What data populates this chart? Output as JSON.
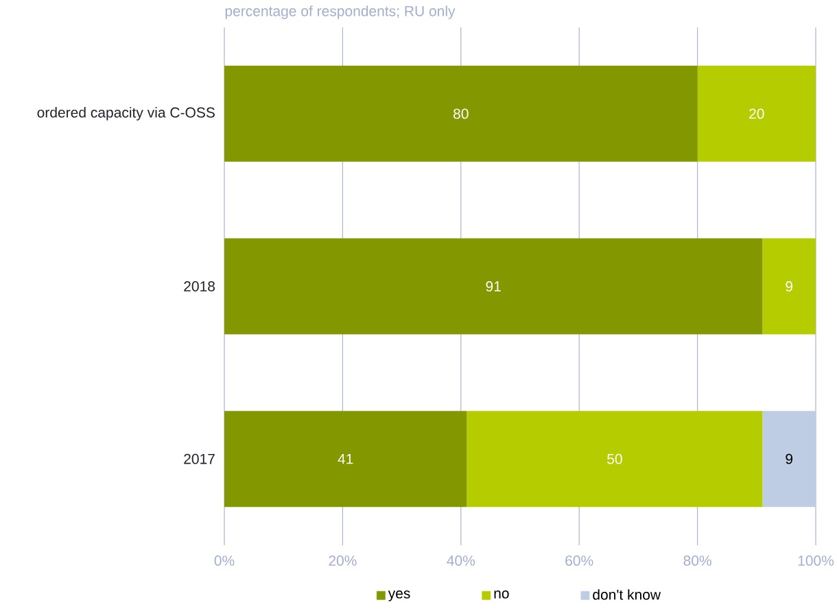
{
  "chart_data": {
    "type": "bar",
    "orientation": "horizontal",
    "stacked": true,
    "subtitle": "percentage of respondents; RU only",
    "categories": [
      "ordered capacity via C-OSS",
      "2018",
      "2017"
    ],
    "series": [
      {
        "name": "yes",
        "color": "#839800",
        "values": [
          80,
          91,
          41
        ]
      },
      {
        "name": "no",
        "color": "#b5cc00",
        "values": [
          20,
          9,
          50
        ]
      },
      {
        "name": "don't know",
        "color": "#bfcde4",
        "values": [
          null,
          null,
          9
        ]
      }
    ],
    "xlim": [
      0,
      100
    ],
    "xticks": [
      {
        "value": 0,
        "label": "0%"
      },
      {
        "value": 20,
        "label": "20%"
      },
      {
        "value": 40,
        "label": "40%"
      },
      {
        "value": 60,
        "label": "60%"
      },
      {
        "value": 80,
        "label": "80%"
      },
      {
        "value": 100,
        "label": "100%"
      }
    ],
    "grid": "x",
    "legend": "bottom",
    "data_labels": true
  }
}
